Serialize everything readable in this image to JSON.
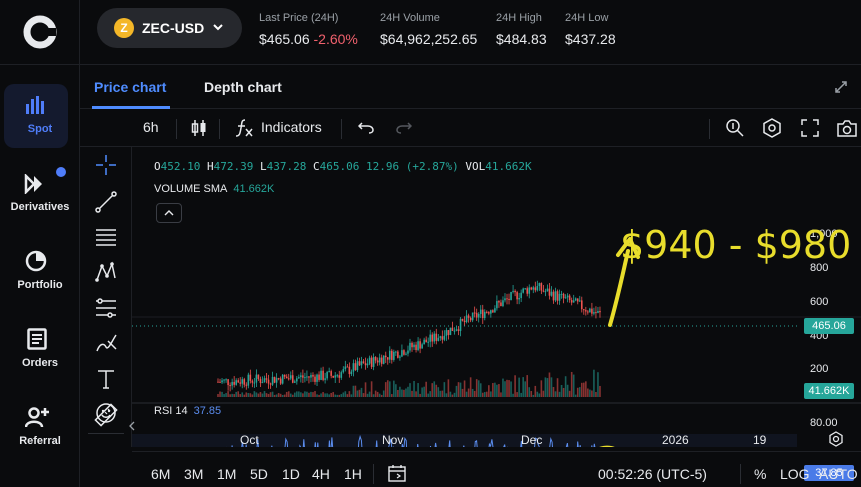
{
  "nav": {
    "items": [
      {
        "label": "Spot",
        "icon": "bar-chart-icon"
      },
      {
        "label": "Derivatives",
        "icon": "fast-forward-icon"
      },
      {
        "label": "Portfolio",
        "icon": "pie-chart-icon"
      },
      {
        "label": "Orders",
        "icon": "document-icon"
      },
      {
        "label": "Referral",
        "icon": "add-user-icon"
      }
    ]
  },
  "header": {
    "coin_symbol": "Z",
    "pair": "ZEC-USD",
    "stats": [
      {
        "label": "Last Price (24H)",
        "value": "$465.06",
        "change": "-2.60%"
      },
      {
        "label": "24H Volume",
        "value": "$64,962,252.65"
      },
      {
        "label": "24H High",
        "value": "$484.83"
      },
      {
        "label": "24H Low",
        "value": "$437.28"
      }
    ]
  },
  "tabs": [
    "Price chart",
    "Depth chart"
  ],
  "toolbar": {
    "interval": "6h",
    "indicators": "Indicators"
  },
  "legend": {
    "o_label": "O",
    "o": "452.10",
    "h_label": "H",
    "h": "472.39",
    "l_label": "L",
    "l": "437.28",
    "c_label": "C",
    "c": "465.06",
    "change": "12.96 (+2.87%)",
    "vol_label": "VOL",
    "vol": "41.662K",
    "volume_sma_label": "VOLUME SMA",
    "volume_sma": "41.662K",
    "rsi_label": "RSI 14",
    "rsi": "37.85"
  },
  "price_axis": [
    "1,000",
    "800",
    "600",
    "400",
    "200"
  ],
  "price_tag": "465.06",
  "volume_tag": "41.662K",
  "rsi_axis": "80.00",
  "rsi_tag": "37.85",
  "annotation": "$940 - $980",
  "time_axis": [
    "Oct",
    "Nov",
    "Dec",
    "2026",
    "19"
  ],
  "ranges": [
    "6M",
    "3M",
    "1M",
    "5D",
    "1D",
    "4H",
    "1H"
  ],
  "clock": "00:52:26 (UTC-5)",
  "scale_options": [
    "%",
    "LOG",
    "AUTO"
  ],
  "colors": {
    "accent": "#4f8cff",
    "up": "#26a69a",
    "down": "#ef5350",
    "rsi_line": "#5b8def",
    "annotation": "#e8dd2c",
    "coin": "#f4b728"
  }
}
